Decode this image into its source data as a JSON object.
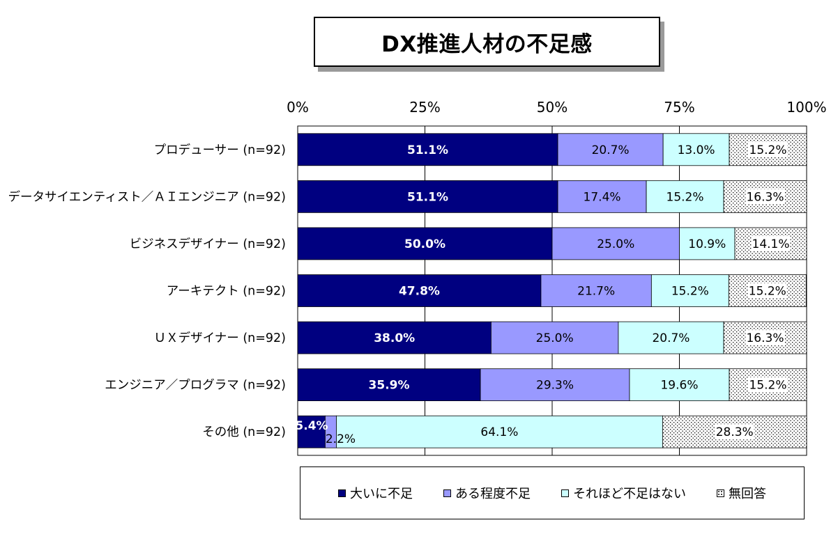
{
  "title": "DX推進人材の不足感",
  "chart_data": {
    "type": "bar",
    "orientation": "horizontal",
    "stacked": true,
    "percent_scale": true,
    "xlim": [
      0,
      100
    ],
    "x_ticks": [
      "0%",
      "25%",
      "50%",
      "75%",
      "100%"
    ],
    "grid": true,
    "legend_position": "bottom",
    "categories": [
      "プロデューサー (n=92)",
      "データサイエンティスト／ＡＩエンジニア (n=92)",
      "ビジネスデザイナー (n=92)",
      "アーキテクト (n=92)",
      "ＵＸデザイナー (n=92)",
      "エンジニア／プログラマ (n=92)",
      "その他 (n=92)"
    ],
    "series": [
      {
        "name": "大いに不足",
        "color": "#000080",
        "pattern": "solid",
        "values": [
          51.1,
          51.1,
          50.0,
          47.8,
          38.0,
          35.9,
          5.4
        ],
        "labels": [
          "51.1%",
          "51.1%",
          "50.0%",
          "47.8%",
          "38.0%",
          "35.9%",
          "5.4%"
        ]
      },
      {
        "name": "ある程度不足",
        "color": "#9999ff",
        "pattern": "solid",
        "values": [
          20.7,
          17.4,
          25.0,
          21.7,
          25.0,
          29.3,
          2.2
        ],
        "labels": [
          "20.7%",
          "17.4%",
          "25.0%",
          "21.7%",
          "25.0%",
          "29.3%",
          "2.2%"
        ]
      },
      {
        "name": "それほど不足はない",
        "color": "#ccffff",
        "pattern": "solid",
        "values": [
          13.0,
          15.2,
          10.9,
          15.2,
          20.7,
          19.6,
          64.1
        ],
        "labels": [
          "13.0%",
          "15.2%",
          "10.9%",
          "15.2%",
          "20.7%",
          "19.6%",
          "64.1%"
        ]
      },
      {
        "name": "無回答",
        "color": "#ffffff",
        "pattern": "dots",
        "values": [
          15.2,
          16.3,
          14.1,
          15.2,
          16.3,
          15.2,
          28.3
        ],
        "labels": [
          "15.2%",
          "16.3%",
          "14.1%",
          "15.2%",
          "16.3%",
          "15.2%",
          "28.3%"
        ]
      }
    ]
  }
}
